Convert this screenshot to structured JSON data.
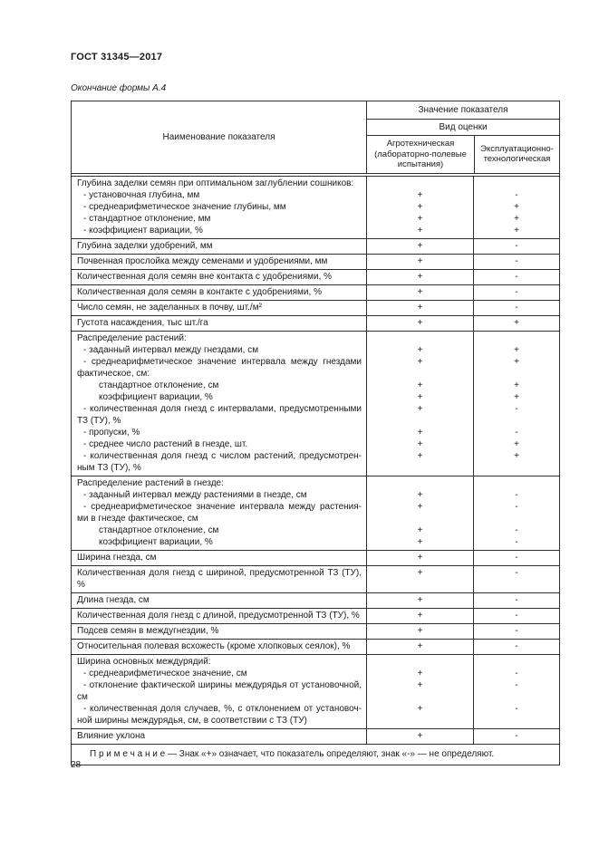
{
  "page": {
    "doc_number": "ГОСТ 31345—2017",
    "form_caption": "Окончание формы А.4",
    "page_number": "28"
  },
  "colors": {
    "background": "#ffffff",
    "text": "#1b1b1b",
    "border": "#2f2f2f"
  },
  "table": {
    "header": {
      "name_col": "Наименование показателя",
      "value_col": "Значение показателя",
      "eval_type": "Вид оценки",
      "col_agro": "Агротехническая (лабораторно-полевые испытания)",
      "col_expl": "Эксплуатационно-технологическая"
    },
    "rows": [
      {
        "lines": [
          {
            "text": "Глубина заделки семян при оптимальном заглублении сошников:",
            "indent": 0,
            "agro": "",
            "expl": ""
          },
          {
            "text": "- установочная глубина, мм",
            "indent": 1,
            "agro": "+",
            "expl": "-"
          },
          {
            "text": "- среднеарифметическое значение глубины, мм",
            "indent": 1,
            "agro": "+",
            "expl": "+"
          },
          {
            "text": "- стандартное отклонение, мм",
            "indent": 1,
            "agro": "+",
            "expl": "+"
          },
          {
            "text": "- коэффициент вариации, %",
            "indent": 1,
            "agro": "+",
            "expl": "+"
          }
        ]
      },
      {
        "lines": [
          {
            "text": "Глубина заделки удобрений, мм",
            "indent": 0,
            "agro": "+",
            "expl": "-"
          }
        ]
      },
      {
        "lines": [
          {
            "text": "Почвенная прослойка между семенами и удобрениями, мм",
            "indent": 0,
            "agro": "+",
            "expl": "-"
          }
        ]
      },
      {
        "lines": [
          {
            "text": "Количественная доля семян вне контакта с удобрениями, %",
            "indent": 0,
            "agro": "+",
            "expl": "-"
          }
        ]
      },
      {
        "lines": [
          {
            "text": "Количественная доля семян в контакте с удобрениями, %",
            "indent": 0,
            "agro": "+",
            "expl": "-"
          }
        ]
      },
      {
        "lines": [
          {
            "text": "Число семян, не заделанных в почву, шт./м²",
            "indent": 0,
            "agro": "+",
            "expl": "-"
          }
        ]
      },
      {
        "lines": [
          {
            "text": "Густота насаждения, тыс шт./га",
            "indent": 0,
            "agro": "+",
            "expl": "+"
          }
        ]
      },
      {
        "lines": [
          {
            "text": "Распределение растений:",
            "indent": 0,
            "agro": "",
            "expl": ""
          },
          {
            "text": "- заданный интервал между гнездами, см",
            "indent": 1,
            "agro": "+",
            "expl": "+"
          },
          {
            "text": "- среднеарифметическое значение интервала между гнездами фактическое, см:",
            "indent": 1,
            "agro": "+",
            "expl": "+"
          },
          {
            "text": "стандартное отклонение, см",
            "indent": 2,
            "agro": "+",
            "expl": "+"
          },
          {
            "text": "коэффициент вариации, %",
            "indent": 2,
            "agro": "+",
            "expl": "+"
          },
          {
            "text": "- количественная доля гнезд с интервалами, предусмотренными ТЗ (ТУ), %",
            "indent": 1,
            "agro": "+",
            "expl": "-"
          },
          {
            "text": "- пропуски, %",
            "indent": 1,
            "agro": "+",
            "expl": "-"
          },
          {
            "text": "- среднее число растений в гнезде, шт.",
            "indent": 1,
            "agro": "+",
            "expl": "+"
          },
          {
            "text": "- количественная доля гнезд с числом растений, предусмотрен-ным ТЗ (ТУ), %",
            "indent": 1,
            "agro": "+",
            "expl": "+"
          }
        ]
      },
      {
        "lines": [
          {
            "text": "Распределение растений в гнезде:",
            "indent": 0,
            "agro": "",
            "expl": ""
          },
          {
            "text": "- заданный интервал между растениями в гнезде, см",
            "indent": 1,
            "agro": "+",
            "expl": "-"
          },
          {
            "text": "- среднеарифметическое значение интервала между растения-ми в гнезде фактическое, см",
            "indent": 1,
            "agro": "+",
            "expl": "-"
          },
          {
            "text": "стандартное отклонение, см",
            "indent": 2,
            "agro": "+",
            "expl": "-"
          },
          {
            "text": "коэффициент вариации, %",
            "indent": 2,
            "agro": "+",
            "expl": "-"
          }
        ]
      },
      {
        "lines": [
          {
            "text": "Ширина гнезда, см",
            "indent": 0,
            "agro": "+",
            "expl": "-"
          }
        ]
      },
      {
        "lines": [
          {
            "text": "Количественная доля гнезд с шириной, предусмотренной ТЗ (ТУ), %",
            "indent": 0,
            "agro": "+",
            "expl": "-"
          }
        ]
      },
      {
        "lines": [
          {
            "text": "Длина гнезда, см",
            "indent": 0,
            "agro": "+",
            "expl": "-"
          }
        ]
      },
      {
        "lines": [
          {
            "text": "Количественная доля гнезд с длиной, предусмотренной ТЗ (ТУ), %",
            "indent": 0,
            "agro": "+",
            "expl": "-"
          }
        ]
      },
      {
        "lines": [
          {
            "text": "Подсев семян в междугнездии, %",
            "indent": 0,
            "agro": "+",
            "expl": "-"
          }
        ]
      },
      {
        "lines": [
          {
            "text": "Относительная полевая всхожесть (кроме хлопковых сеялок), %",
            "indent": 0,
            "agro": "+",
            "expl": "-"
          }
        ]
      },
      {
        "lines": [
          {
            "text": "Ширина основных междурядий:",
            "indent": 0,
            "agro": "",
            "expl": ""
          },
          {
            "text": "- среднеарифметическое значение, см",
            "indent": 1,
            "agro": "+",
            "expl": "-"
          },
          {
            "text": "- отклонение фактической ширины междурядья от установочной, см",
            "indent": 1,
            "agro": "+",
            "expl": "-"
          },
          {
            "text": "- количественная доля случаев, %, с отклонением от установоч-ной ширины междурядья, см, в соответствии с ТЗ (ТУ)",
            "indent": 1,
            "agro": "+",
            "expl": "-"
          }
        ]
      },
      {
        "lines": [
          {
            "text": "Влияние уклона",
            "indent": 0,
            "agro": "+",
            "expl": "-"
          }
        ]
      }
    ],
    "note": "П р и м е ч а н и е  — Знак «+» означает, что показатель определяют, знак «-» — не определяют."
  }
}
